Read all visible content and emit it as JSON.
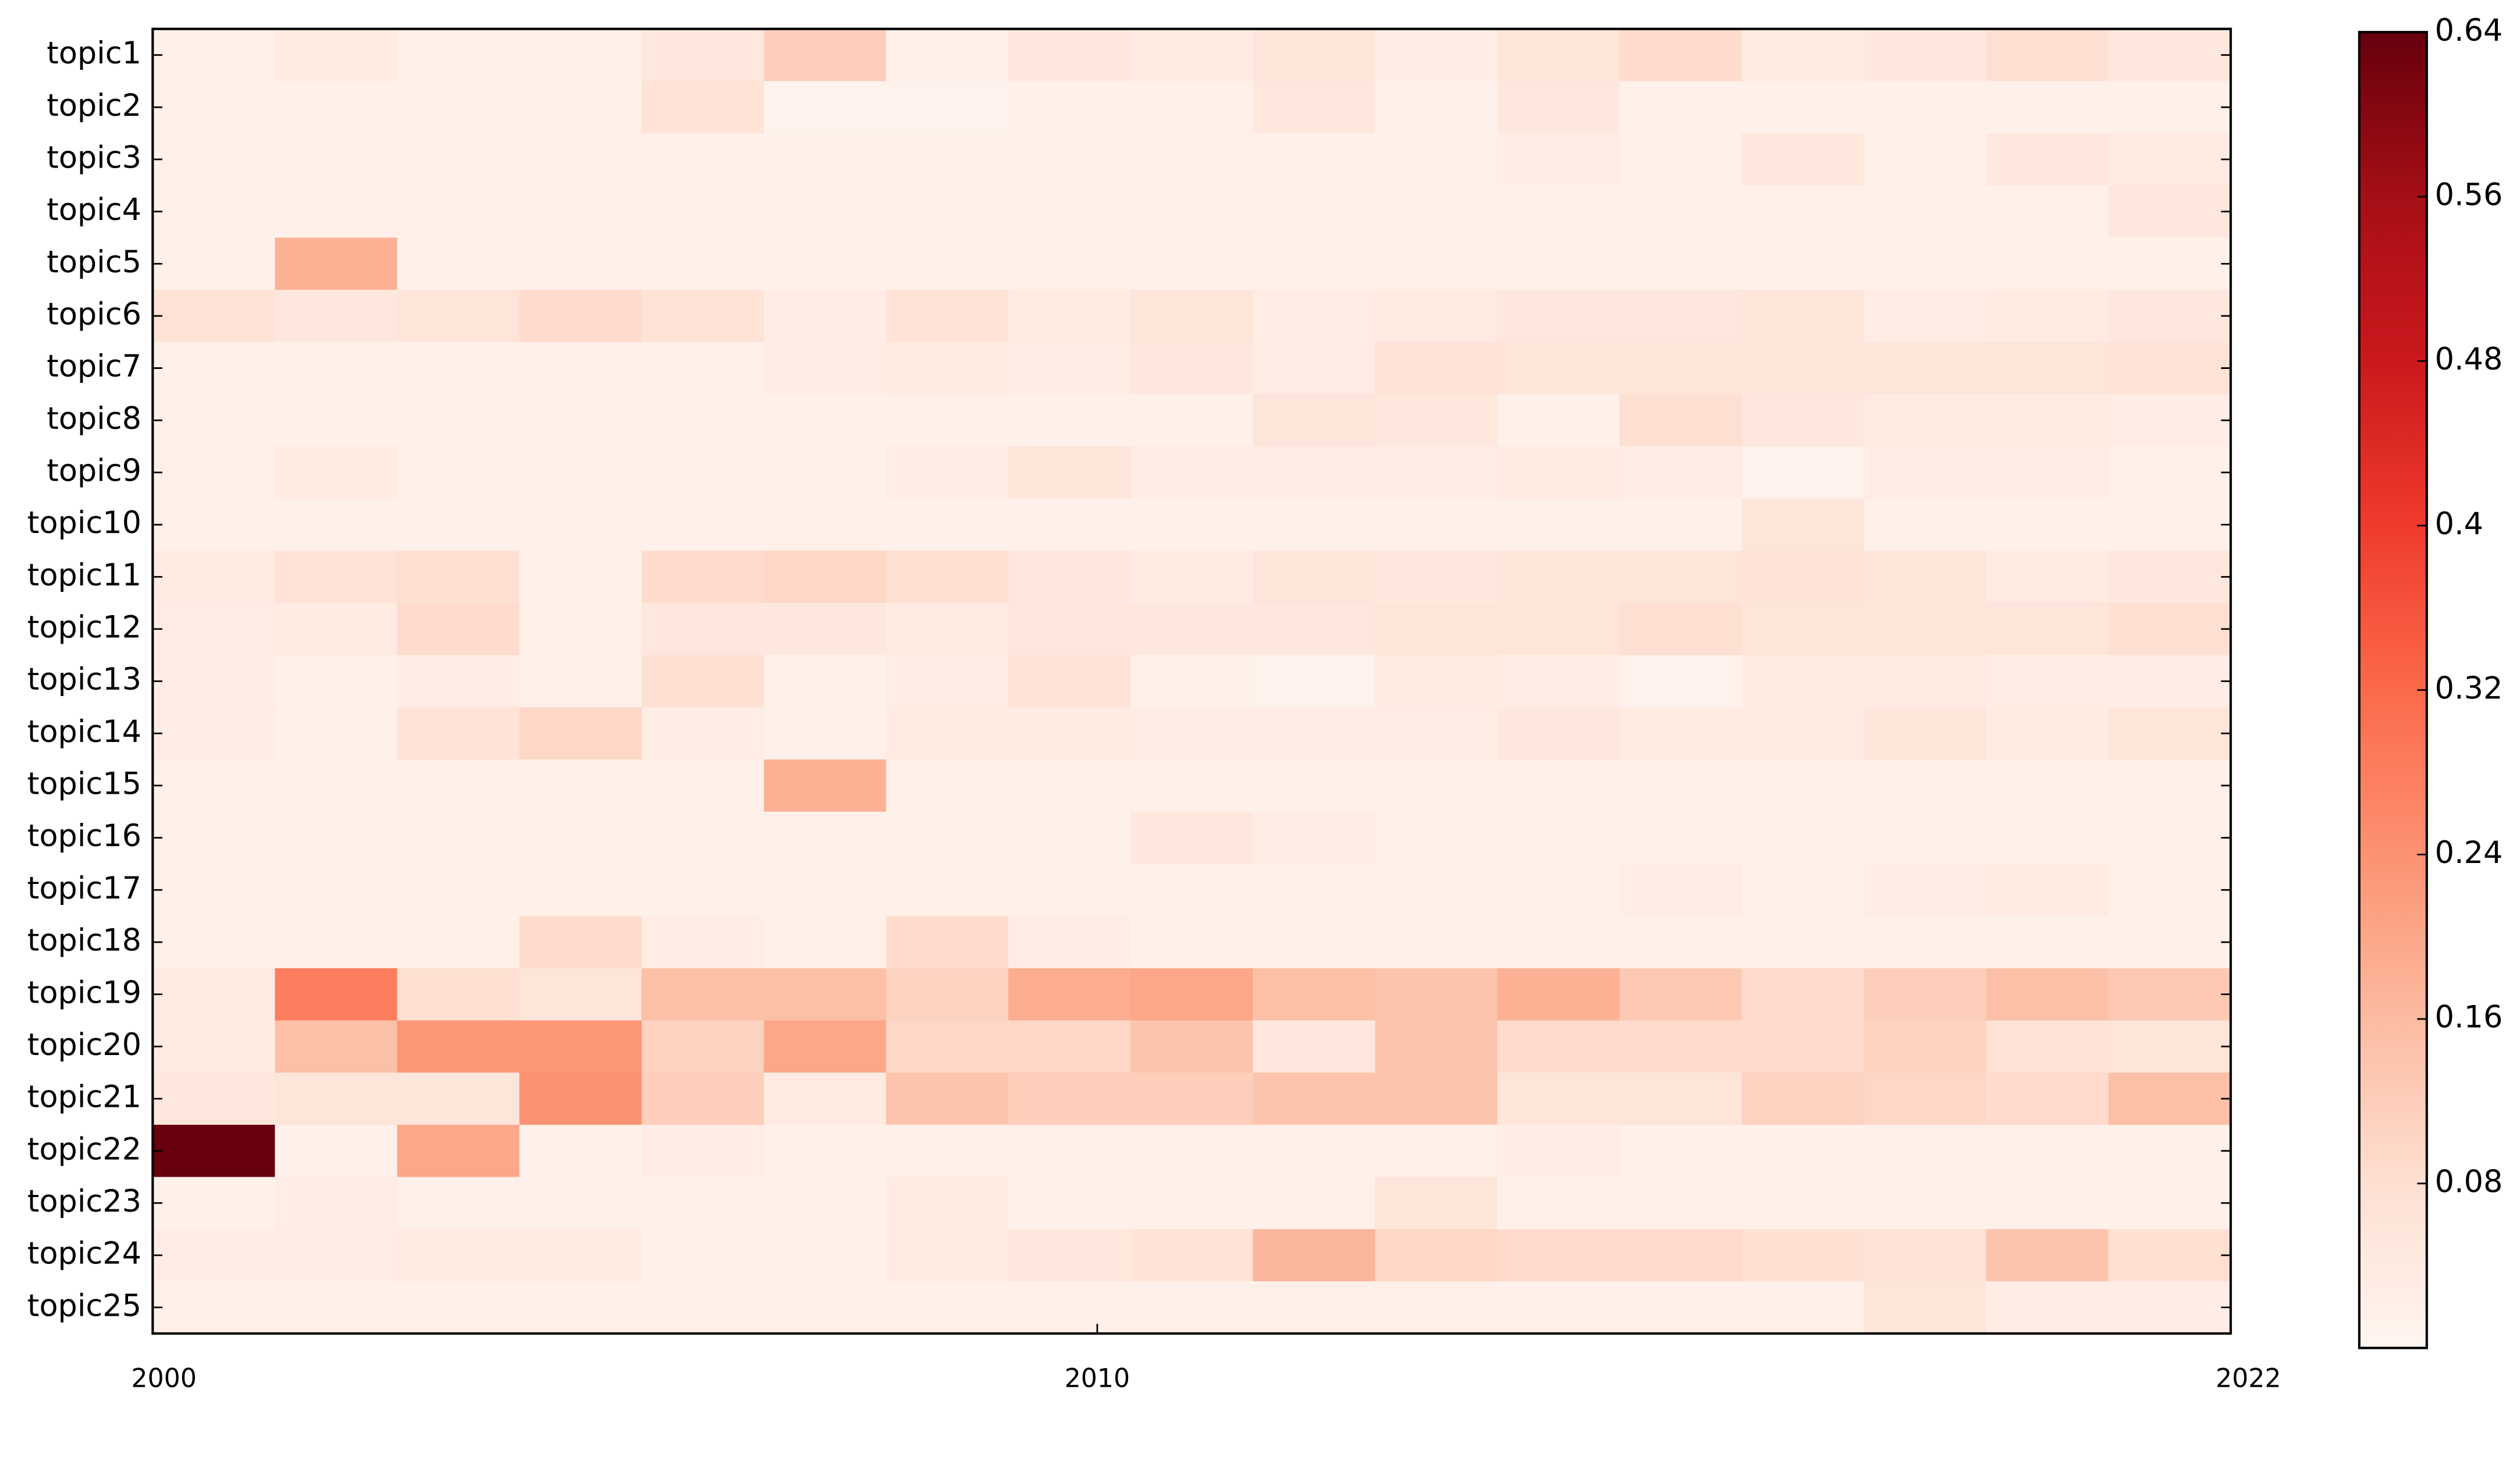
{
  "chart_data": {
    "type": "heatmap",
    "categories": [
      "topic1",
      "topic2",
      "topic3",
      "topic4",
      "topic5",
      "topic6",
      "topic7",
      "topic8",
      "topic9",
      "topic10",
      "topic11",
      "topic12",
      "topic13",
      "topic14",
      "topic15",
      "topic16",
      "topic17",
      "topic18",
      "topic19",
      "topic20",
      "topic21",
      "topic22",
      "topic23",
      "topic24",
      "topic25"
    ],
    "xlim": [
      2000,
      2022
    ],
    "xticks": [
      2000,
      2010,
      2022
    ],
    "zlim": [
      0,
      0.64
    ],
    "zticks": [
      0.08,
      0.16,
      0.24,
      0.32,
      0.4,
      0.48,
      0.56,
      0.64
    ],
    "colors": [
      "#fff5f0",
      "#fee0d2",
      "#fcbba1",
      "#fc9272",
      "#fb6a4a",
      "#ef3b2c",
      "#cb181d",
      "#a50f15",
      "#67000d"
    ],
    "values": [
      [
        0.02,
        0.04,
        0.02,
        0.02,
        0.05,
        0.12,
        0.02,
        0.05,
        0.04,
        0.06,
        0.03,
        0.06,
        0.09,
        0.04,
        0.05,
        0.08,
        0.05
      ],
      [
        0.02,
        0.02,
        0.02,
        0.02,
        0.07,
        0.01,
        0.01,
        0.02,
        0.02,
        0.05,
        0.02,
        0.05,
        0.02,
        0.02,
        0.02,
        0.02,
        0.02
      ],
      [
        0.02,
        0.02,
        0.02,
        0.02,
        0.02,
        0.02,
        0.02,
        0.02,
        0.02,
        0.02,
        0.02,
        0.03,
        0.02,
        0.05,
        0.02,
        0.05,
        0.04
      ],
      [
        0.02,
        0.02,
        0.02,
        0.02,
        0.02,
        0.02,
        0.02,
        0.02,
        0.02,
        0.02,
        0.02,
        0.02,
        0.02,
        0.02,
        0.02,
        0.02,
        0.05
      ],
      [
        0.02,
        0.18,
        0.02,
        0.02,
        0.02,
        0.02,
        0.02,
        0.02,
        0.02,
        0.02,
        0.02,
        0.02,
        0.02,
        0.02,
        0.02,
        0.02,
        0.02
      ],
      [
        0.07,
        0.05,
        0.06,
        0.09,
        0.07,
        0.03,
        0.07,
        0.04,
        0.06,
        0.03,
        0.04,
        0.05,
        0.05,
        0.06,
        0.03,
        0.04,
        0.05
      ],
      [
        0.02,
        0.02,
        0.02,
        0.02,
        0.02,
        0.03,
        0.04,
        0.03,
        0.05,
        0.03,
        0.07,
        0.06,
        0.06,
        0.06,
        0.06,
        0.06,
        0.07
      ],
      [
        0.02,
        0.02,
        0.02,
        0.02,
        0.02,
        0.02,
        0.02,
        0.02,
        0.02,
        0.06,
        0.05,
        0.02,
        0.08,
        0.05,
        0.04,
        0.04,
        0.03
      ],
      [
        0.02,
        0.04,
        0.02,
        0.02,
        0.02,
        0.02,
        0.03,
        0.06,
        0.03,
        0.03,
        0.03,
        0.04,
        0.03,
        0.01,
        0.03,
        0.03,
        0.02
      ],
      [
        0.02,
        0.02,
        0.02,
        0.02,
        0.02,
        0.02,
        0.02,
        0.02,
        0.02,
        0.02,
        0.02,
        0.02,
        0.02,
        0.06,
        0.02,
        0.02,
        0.02
      ],
      [
        0.04,
        0.07,
        0.08,
        0.02,
        0.09,
        0.1,
        0.08,
        0.05,
        0.04,
        0.06,
        0.05,
        0.06,
        0.06,
        0.07,
        0.06,
        0.04,
        0.05
      ],
      [
        0.03,
        0.04,
        0.09,
        0.02,
        0.05,
        0.05,
        0.04,
        0.05,
        0.05,
        0.05,
        0.06,
        0.06,
        0.08,
        0.06,
        0.06,
        0.06,
        0.08
      ],
      [
        0.03,
        0.02,
        0.03,
        0.02,
        0.08,
        0.02,
        0.03,
        0.07,
        0.02,
        0.01,
        0.04,
        0.03,
        0.01,
        0.04,
        0.04,
        0.03,
        0.03
      ],
      [
        0.03,
        0.02,
        0.07,
        0.1,
        0.03,
        0.02,
        0.04,
        0.04,
        0.03,
        0.03,
        0.03,
        0.05,
        0.04,
        0.04,
        0.06,
        0.04,
        0.06
      ],
      [
        0.02,
        0.02,
        0.02,
        0.02,
        0.02,
        0.18,
        0.02,
        0.02,
        0.02,
        0.02,
        0.02,
        0.02,
        0.02,
        0.02,
        0.02,
        0.02,
        0.02
      ],
      [
        0.02,
        0.02,
        0.02,
        0.02,
        0.02,
        0.02,
        0.02,
        0.02,
        0.05,
        0.03,
        0.02,
        0.02,
        0.02,
        0.02,
        0.02,
        0.02,
        0.02
      ],
      [
        0.02,
        0.02,
        0.02,
        0.02,
        0.02,
        0.02,
        0.02,
        0.02,
        0.02,
        0.02,
        0.02,
        0.02,
        0.03,
        0.02,
        0.03,
        0.04,
        0.02
      ],
      [
        0.02,
        0.02,
        0.02,
        0.09,
        0.03,
        0.02,
        0.09,
        0.03,
        0.02,
        0.02,
        0.02,
        0.02,
        0.02,
        0.02,
        0.02,
        0.02,
        0.02
      ],
      [
        0.04,
        0.28,
        0.08,
        0.06,
        0.15,
        0.15,
        0.11,
        0.19,
        0.2,
        0.15,
        0.14,
        0.18,
        0.13,
        0.09,
        0.12,
        0.15,
        0.13
      ],
      [
        0.04,
        0.15,
        0.23,
        0.23,
        0.11,
        0.2,
        0.1,
        0.1,
        0.14,
        0.05,
        0.14,
        0.09,
        0.09,
        0.09,
        0.11,
        0.07,
        0.06
      ],
      [
        0.05,
        0.06,
        0.06,
        0.24,
        0.12,
        0.04,
        0.14,
        0.12,
        0.12,
        0.14,
        0.14,
        0.06,
        0.06,
        0.11,
        0.1,
        0.09,
        0.15
      ],
      [
        0.64,
        0.02,
        0.2,
        0.02,
        0.03,
        0.02,
        0.02,
        0.02,
        0.02,
        0.02,
        0.02,
        0.03,
        0.02,
        0.02,
        0.02,
        0.02,
        0.02
      ],
      [
        0.02,
        0.03,
        0.02,
        0.02,
        0.02,
        0.02,
        0.04,
        0.02,
        0.02,
        0.02,
        0.06,
        0.02,
        0.02,
        0.02,
        0.02,
        0.02,
        0.02
      ],
      [
        0.03,
        0.03,
        0.04,
        0.04,
        0.02,
        0.02,
        0.04,
        0.05,
        0.07,
        0.17,
        0.1,
        0.09,
        0.09,
        0.08,
        0.07,
        0.14,
        0.08
      ],
      [
        0.02,
        0.02,
        0.02,
        0.02,
        0.02,
        0.02,
        0.02,
        0.02,
        0.02,
        0.02,
        0.02,
        0.02,
        0.02,
        0.02,
        0.06,
        0.03,
        0.03
      ]
    ]
  }
}
